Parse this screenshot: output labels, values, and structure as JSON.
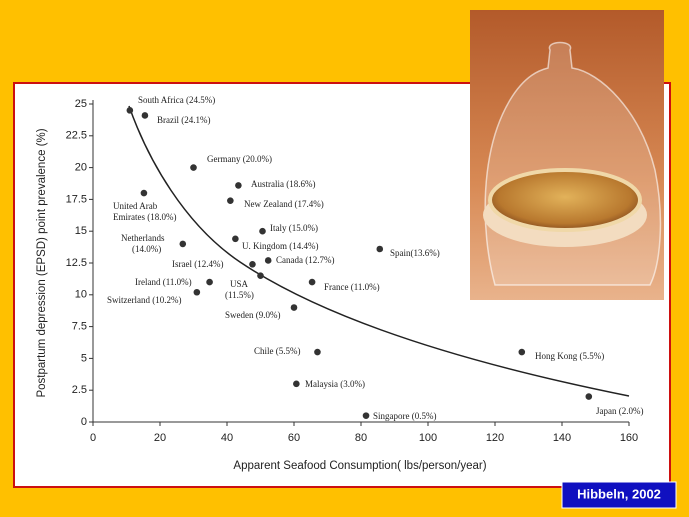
{
  "chart_data": {
    "type": "scatter",
    "xlabel": "Apparent Seafood Consumption( lbs/person/year)",
    "ylabel": "Postpartum depression (EPSD) point prevalence (%)",
    "xlim": [
      0,
      160
    ],
    "xticks": [
      0,
      20,
      40,
      60,
      80,
      100,
      120,
      140,
      160
    ],
    "ylim": [
      0,
      25
    ],
    "yticks": [
      0,
      2.5,
      5,
      7.5,
      10,
      12.5,
      15,
      17.5,
      20,
      22.5,
      25
    ],
    "color": "#333333",
    "x": [
      11,
      15.5,
      30,
      43.4,
      41,
      15.2,
      50.6,
      42.5,
      26.8,
      85.6,
      47.6,
      52.3,
      50,
      34.8,
      65.4,
      31,
      60,
      67,
      128,
      60.7,
      81.5,
      148
    ],
    "y": [
      24.5,
      24.1,
      20.0,
      18.6,
      17.4,
      18.0,
      15.0,
      14.4,
      14.0,
      13.6,
      12.4,
      12.7,
      11.5,
      11.0,
      11.0,
      10.2,
      9.0,
      5.5,
      5.5,
      3.0,
      0.5,
      2.0
    ],
    "labels": [
      [
        "South Africa (24.5%)"
      ],
      [
        "Brazil (24.1%)"
      ],
      [
        "Germany (20.0%)"
      ],
      [
        "Australia (18.6%)"
      ],
      [
        "New Zealand (17.4%)"
      ],
      [
        "United Arab",
        "Emirates (18.0%)"
      ],
      [
        "Italy (15.0%)"
      ],
      [
        "U. Kingdom (14.4%)"
      ],
      [
        "Netherlands",
        "(14.0%)"
      ],
      [
        "Spain(13.6%)"
      ],
      [
        "Israel (12.4%)"
      ],
      [
        "Canada (12.7%)"
      ],
      [
        "USA",
        "(11.5%)"
      ],
      [
        "Ireland (11.0%)"
      ],
      [
        "France (11.0%)"
      ],
      [
        "Switzerland (10.2%)"
      ],
      [
        "Sweden (9.0%)"
      ],
      [
        "Chile (5.5%)"
      ],
      [
        "Hong Kong (5.5%)"
      ],
      [
        "Malaysia (3.0%)"
      ],
      [
        "Singapore (0.5%)"
      ],
      [
        "Japan (2.0%)"
      ]
    ]
  },
  "citation": "Hibbeln, 2002"
}
